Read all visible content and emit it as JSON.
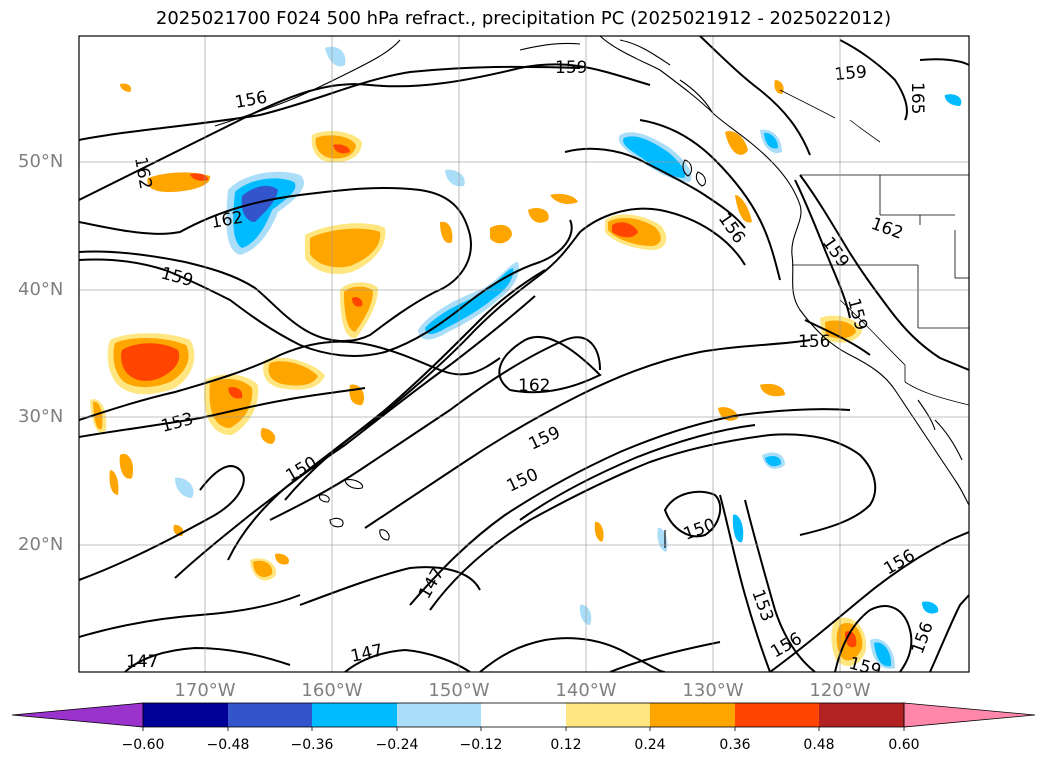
{
  "title": "2025021700 F024 500 hPa refract., precipitation PC (2025021912 - 2025022012)",
  "axes": {
    "lat_labels": [
      "50°N",
      "40°N",
      "30°N",
      "20°N"
    ],
    "lon_labels": [
      "170°W",
      "160°W",
      "150°W",
      "140°W",
      "130°W",
      "120°W"
    ]
  },
  "contour_labels": [
    "156",
    "159",
    "159",
    "165",
    "162",
    "162",
    "159",
    "156",
    "162",
    "162",
    "159",
    "159",
    "156",
    "153",
    "150",
    "159",
    "150",
    "150",
    "156",
    "153",
    "156",
    "159",
    "156",
    "147",
    "147",
    "147"
  ],
  "colorbar": {
    "ticks": [
      "−0.60",
      "−0.48",
      "−0.36",
      "−0.24",
      "−0.12",
      "0.12",
      "0.24",
      "0.36",
      "0.48",
      "0.60"
    ],
    "colors": [
      "#9933cc",
      "#000099",
      "#3355cc",
      "#00bbff",
      "#aaddf8",
      "#ffffff",
      "#ffe680",
      "#ffa500",
      "#ff4500",
      "#b22222",
      "#ff88aa"
    ]
  }
}
